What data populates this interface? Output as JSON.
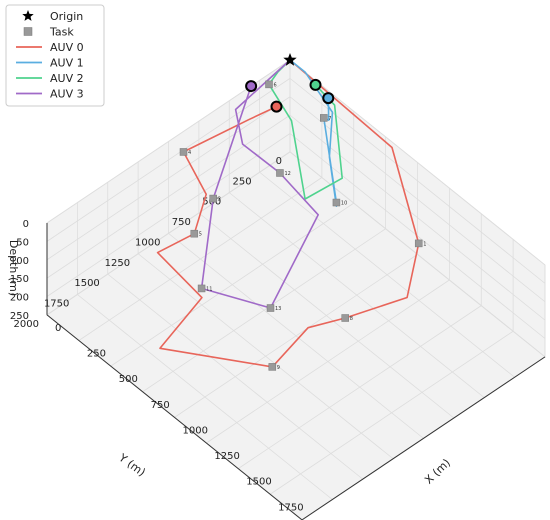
{
  "chart_data": {
    "type": "line3d",
    "title": "",
    "xlabel": "X (m)",
    "ylabel": "Y (m)",
    "zlabel": "Depth (m)",
    "xlim": [
      0,
      2000
    ],
    "ylim": [
      0,
      2000
    ],
    "zlim": [
      0,
      250
    ],
    "z_inverted": true,
    "xticks": [
      0,
      250,
      500,
      750,
      1000,
      1250,
      1500,
      1750,
      2000
    ],
    "yticks": [
      0,
      250,
      500,
      750,
      1000,
      1250,
      1500,
      1750,
      2000
    ],
    "zticks": [
      0,
      50,
      100,
      150,
      200,
      250
    ],
    "grid": true,
    "legend": {
      "position": "top-left",
      "entries": [
        "Origin",
        "Task",
        "AUV 0",
        "AUV 1",
        "AUV 2",
        "AUV 3"
      ]
    },
    "origin": {
      "name": "Origin",
      "x": 0,
      "y": 0,
      "z": 0
    },
    "tasks": [
      {
        "id": "t1",
        "label": "1",
        "x": 1200,
        "y": 200,
        "z": 120
      },
      {
        "id": "t2",
        "label": "2",
        "x": 160,
        "y": 800,
        "z": 155
      },
      {
        "id": "t4",
        "label": "4",
        "x": 70,
        "y": 950,
        "z": 20
      },
      {
        "id": "t5",
        "label": "5",
        "x": 250,
        "y": 1050,
        "z": 170
      },
      {
        "id": "t6",
        "label": "6",
        "x": 45,
        "y": 220,
        "z": 5
      },
      {
        "id": "t7",
        "label": "7",
        "x": 360,
        "y": 100,
        "z": 35
      },
      {
        "id": "t8",
        "label": "8",
        "x": 1100,
        "y": 700,
        "z": 240
      },
      {
        "id": "t9",
        "label": "9",
        "x": 1100,
        "y": 1300,
        "z": 240
      },
      {
        "id": "t10",
        "label": "10",
        "x": 650,
        "y": 300,
        "z": 140
      },
      {
        "id": "t11",
        "label": "11",
        "x": 450,
        "y": 1200,
        "z": 230
      },
      {
        "id": "t12",
        "label": "12",
        "x": 350,
        "y": 450,
        "z": 110
      },
      {
        "id": "t13",
        "label": "13",
        "x": 800,
        "y": 1000,
        "z": 230
      }
    ],
    "series": [
      {
        "name": "AUV 0",
        "color": "#e8655a",
        "points": [
          [
            0,
            0,
            0
          ],
          [
            800,
            0,
            15
          ],
          [
            1200,
            200,
            120
          ],
          [
            1300,
            400,
            195
          ],
          [
            1100,
            700,
            240
          ],
          [
            1000,
            900,
            250
          ],
          [
            1100,
            1300,
            240
          ],
          [
            600,
            1700,
            240
          ],
          [
            500,
            1250,
            230
          ],
          [
            200,
            1300,
            180
          ],
          [
            250,
            1050,
            170
          ],
          [
            200,
            900,
            110
          ],
          [
            70,
            950,
            20
          ],
          [
            150,
            500,
            10
          ],
          [
            180,
            300,
            10
          ]
        ]
      },
      {
        "name": "AUV 1",
        "color": "#5aaee0",
        "points": [
          [
            300,
            0,
            20
          ],
          [
            380,
            80,
            40
          ],
          [
            360,
            100,
            35
          ],
          [
            650,
            300,
            140
          ],
          [
            650,
            300,
            150
          ],
          [
            500,
            200,
            80
          ],
          [
            380,
            50,
            25
          ],
          [
            120,
            0,
            0
          ],
          [
            0,
            0,
            0
          ]
        ]
      },
      {
        "name": "AUV 2",
        "color": "#4fd38e",
        "points": [
          [
            200,
            0,
            12
          ],
          [
            350,
            0,
            25
          ],
          [
            600,
            200,
            110
          ],
          [
            500,
            400,
            150
          ],
          [
            250,
            250,
            40
          ],
          [
            45,
            220,
            5
          ],
          [
            20,
            120,
            0
          ],
          [
            0,
            0,
            0
          ]
        ]
      },
      {
        "name": "AUV 3",
        "color": "#a06ac8",
        "points": [
          [
            0,
            320,
            0
          ],
          [
            160,
            800,
            155
          ],
          [
            450,
            1200,
            230
          ],
          [
            800,
            1000,
            230
          ],
          [
            650,
            450,
            140
          ],
          [
            350,
            450,
            110
          ],
          [
            200,
            600,
            40
          ],
          [
            50,
            500,
            10
          ],
          [
            0,
            0,
            0
          ]
        ]
      }
    ],
    "end_markers": [
      {
        "series": "AUV 0",
        "x": 180,
        "y": 300,
        "z": 10
      },
      {
        "series": "AUV 1",
        "x": 300,
        "y": 0,
        "z": 20
      },
      {
        "series": "AUV 2",
        "x": 200,
        "y": 0,
        "z": 12
      },
      {
        "series": "AUV 3",
        "x": 0,
        "y": 320,
        "z": 0
      }
    ],
    "style": {
      "origin_color": "#000000",
      "task_color": "#999999",
      "pane_color": "#f2f2f2",
      "grid_color": "#dddddd"
    }
  }
}
